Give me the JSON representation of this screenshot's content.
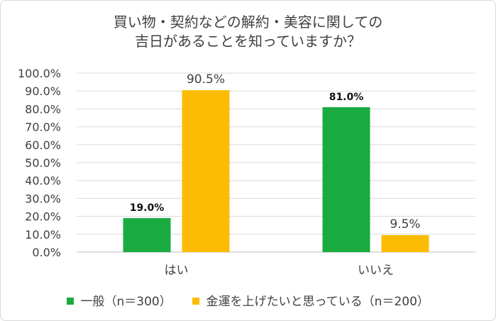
{
  "chart_data": {
    "type": "bar",
    "title_lines": [
      "買い物・契約などの解約・美容に関しての",
      "吉日があることを知っていますか？"
    ],
    "categories": [
      "はい",
      "いいえ"
    ],
    "series": [
      {
        "name": "一般（n＝300）",
        "values": [
          19.0,
          81.0
        ],
        "color": "#1aab40",
        "labels": [
          "19.0%",
          "81.0%"
        ]
      },
      {
        "name": "金運を上げたいと思っている（n＝200）",
        "values": [
          90.5,
          9.5
        ],
        "color": "#fcbc04",
        "labels": [
          "90.5%",
          "9.5%"
        ]
      }
    ],
    "yticks": [
      "0.0%",
      "10.0%",
      "20.0%",
      "30.0%",
      "40.0%",
      "50.0%",
      "60.0%",
      "70.0%",
      "80.0%",
      "90.0%",
      "100.0%"
    ],
    "ylim": [
      0,
      100
    ],
    "grid": true,
    "legend_position": "bottom"
  }
}
